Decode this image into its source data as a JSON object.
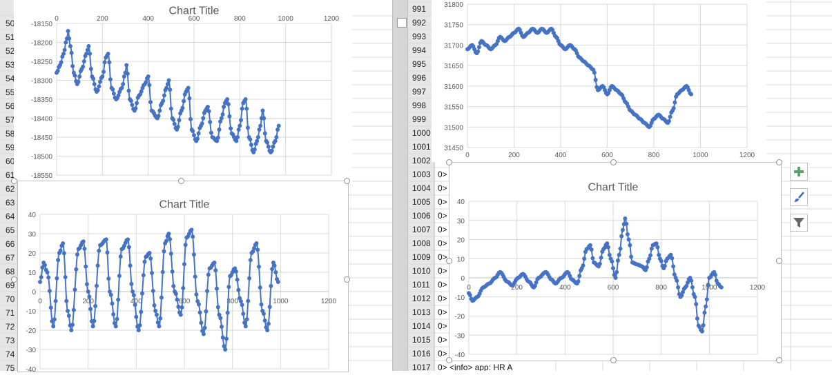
{
  "left_rows": [
    "50",
    "51",
    "52",
    "53",
    "54",
    "55",
    "56",
    "57",
    "58",
    "59",
    "60",
    "61",
    "62",
    "63",
    "64",
    "65",
    "66",
    "67",
    "68",
    "69",
    "70",
    "71",
    "72",
    "73",
    "74",
    "75"
  ],
  "right_rows": [
    "991",
    "992",
    "993",
    "994",
    "995",
    "996",
    "997",
    "998",
    "999",
    "1000",
    "1001",
    "1002",
    "1003",
    "1004",
    "1005",
    "1006",
    "1007",
    "1008",
    "1009",
    "1010",
    "1011",
    "1012",
    "1013",
    "1014",
    "1015",
    "1016",
    "1017"
  ],
  "log_cells": [
    "0>",
    "0>",
    "0>",
    "0>",
    "0>",
    "0>",
    "0>",
    "0>",
    "0>",
    "0>",
    "0>",
    "0>",
    "0>",
    "0>"
  ],
  "log_last": "0> <info> app: HR A",
  "chart_tools": {
    "add": "chart-elements",
    "style": "chart-styles",
    "filter": "chart-filters"
  },
  "chart_data": [
    {
      "id": "top-left",
      "type": "scatter",
      "title": "Chart Title",
      "xticks": [
        "0",
        "200",
        "400",
        "600",
        "800",
        "1000",
        "1200"
      ],
      "yticks": [
        "-18150",
        "-18200",
        "-18250",
        "-18300",
        "-18350",
        "-18400",
        "-18450",
        "-18500",
        "-18550"
      ],
      "xlim": [
        0,
        1200
      ],
      "ylim": [
        -18550,
        -18150
      ],
      "series": [
        {
          "color": "#4472C4",
          "points": [
            [
              0,
              -18280
            ],
            [
              15,
              -18260
            ],
            [
              30,
              -18230
            ],
            [
              45,
              -18190
            ],
            [
              50,
              -18170
            ],
            [
              60,
              -18210
            ],
            [
              75,
              -18280
            ],
            [
              90,
              -18310
            ],
            [
              110,
              -18270
            ],
            [
              130,
              -18230
            ],
            [
              140,
              -18210
            ],
            [
              155,
              -18290
            ],
            [
              175,
              -18330
            ],
            [
              200,
              -18290
            ],
            [
              215,
              -18240
            ],
            [
              225,
              -18230
            ],
            [
              240,
              -18320
            ],
            [
              260,
              -18350
            ],
            [
              285,
              -18320
            ],
            [
              300,
              -18280
            ],
            [
              305,
              -18260
            ],
            [
              320,
              -18350
            ],
            [
              340,
              -18380
            ],
            [
              360,
              -18340
            ],
            [
              385,
              -18310
            ],
            [
              400,
              -18290
            ],
            [
              415,
              -18380
            ],
            [
              440,
              -18400
            ],
            [
              460,
              -18360
            ],
            [
              480,
              -18320
            ],
            [
              490,
              -18300
            ],
            [
              505,
              -18400
            ],
            [
              525,
              -18430
            ],
            [
              545,
              -18380
            ],
            [
              565,
              -18330
            ],
            [
              575,
              -18320
            ],
            [
              590,
              -18430
            ],
            [
              610,
              -18460
            ],
            [
              630,
              -18420
            ],
            [
              650,
              -18380
            ],
            [
              660,
              -18370
            ],
            [
              680,
              -18450
            ],
            [
              700,
              -18460
            ],
            [
              720,
              -18400
            ],
            [
              735,
              -18360
            ],
            [
              745,
              -18350
            ],
            [
              765,
              -18440
            ],
            [
              785,
              -18460
            ],
            [
              800,
              -18420
            ],
            [
              815,
              -18360
            ],
            [
              825,
              -18350
            ],
            [
              840,
              -18450
            ],
            [
              860,
              -18490
            ],
            [
              875,
              -18460
            ],
            [
              890,
              -18420
            ],
            [
              900,
              -18380
            ],
            [
              915,
              -18460
            ],
            [
              935,
              -18490
            ],
            [
              955,
              -18460
            ],
            [
              970,
              -18420
            ]
          ]
        }
      ]
    },
    {
      "id": "bottom-left",
      "type": "scatter",
      "title": "Chart Title",
      "xticks": [
        "0",
        "200",
        "400",
        "600",
        "800",
        "1000",
        "1200"
      ],
      "yticks": [
        "40",
        "30",
        "20",
        "10",
        "0",
        "-10",
        "-20",
        "-30",
        "-40"
      ],
      "xlim": [
        0,
        1200
      ],
      "ylim": [
        -40,
        40
      ],
      "series": [
        {
          "color": "#4472C4",
          "points": [
            [
              0,
              5
            ],
            [
              15,
              15
            ],
            [
              30,
              10
            ],
            [
              55,
              -18
            ],
            [
              80,
              20
            ],
            [
              95,
              25
            ],
            [
              115,
              -10
            ],
            [
              130,
              -20
            ],
            [
              160,
              22
            ],
            [
              180,
              26
            ],
            [
              200,
              0
            ],
            [
              220,
              -18
            ],
            [
              250,
              24
            ],
            [
              275,
              27
            ],
            [
              290,
              0
            ],
            [
              315,
              -18
            ],
            [
              340,
              22
            ],
            [
              365,
              27
            ],
            [
              385,
              0
            ],
            [
              410,
              -20
            ],
            [
              440,
              18
            ],
            [
              455,
              20
            ],
            [
              480,
              -10
            ],
            [
              495,
              -18
            ],
            [
              520,
              25
            ],
            [
              535,
              30
            ],
            [
              560,
              0
            ],
            [
              585,
              -12
            ],
            [
              610,
              28
            ],
            [
              630,
              32
            ],
            [
              655,
              -5
            ],
            [
              680,
              -22
            ],
            [
              705,
              12
            ],
            [
              725,
              15
            ],
            [
              745,
              -12
            ],
            [
              770,
              -30
            ],
            [
              790,
              8
            ],
            [
              810,
              12
            ],
            [
              835,
              -5
            ],
            [
              855,
              -18
            ],
            [
              880,
              20
            ],
            [
              900,
              25
            ],
            [
              925,
              -10
            ],
            [
              945,
              -20
            ],
            [
              970,
              15
            ],
            [
              990,
              5
            ]
          ]
        }
      ]
    },
    {
      "id": "top-right",
      "type": "scatter",
      "title": "",
      "xticks": [
        "0",
        "200",
        "400",
        "600",
        "800",
        "1000",
        "1200"
      ],
      "yticks": [
        "31800",
        "31750",
        "31700",
        "31650",
        "31600",
        "31550",
        "31500",
        "31450"
      ],
      "xlim": [
        0,
        1200
      ],
      "ylim": [
        31450,
        31800
      ],
      "series": [
        {
          "color": "#4472C4",
          "points": [
            [
              0,
              31690
            ],
            [
              20,
              31700
            ],
            [
              40,
              31680
            ],
            [
              60,
              31710
            ],
            [
              80,
              31700
            ],
            [
              100,
              31690
            ],
            [
              120,
              31700
            ],
            [
              140,
              31720
            ],
            [
              160,
              31710
            ],
            [
              180,
              31720
            ],
            [
              200,
              31730
            ],
            [
              220,
              31740
            ],
            [
              240,
              31720
            ],
            [
              260,
              31730
            ],
            [
              280,
              31740
            ],
            [
              300,
              31730
            ],
            [
              320,
              31740
            ],
            [
              340,
              31730
            ],
            [
              360,
              31740
            ],
            [
              380,
              31720
            ],
            [
              400,
              31700
            ],
            [
              420,
              31690
            ],
            [
              440,
              31700
            ],
            [
              460,
              31690
            ],
            [
              480,
              31670
            ],
            [
              500,
              31660
            ],
            [
              520,
              31650
            ],
            [
              540,
              31640
            ],
            [
              560,
              31590
            ],
            [
              580,
              31600
            ],
            [
              600,
              31580
            ],
            [
              620,
              31600
            ],
            [
              640,
              31590
            ],
            [
              660,
              31580
            ],
            [
              680,
              31560
            ],
            [
              700,
              31540
            ],
            [
              720,
              31530
            ],
            [
              740,
              31520
            ],
            [
              760,
              31510
            ],
            [
              780,
              31500
            ],
            [
              800,
              31520
            ],
            [
              820,
              31530
            ],
            [
              840,
              31520
            ],
            [
              860,
              31510
            ],
            [
              880,
              31540
            ],
            [
              900,
              31580
            ],
            [
              920,
              31590
            ],
            [
              940,
              31600
            ],
            [
              960,
              31580
            ]
          ]
        }
      ]
    },
    {
      "id": "bottom-right",
      "type": "scatter",
      "title": "Chart Title",
      "xticks": [
        "0",
        "200",
        "400",
        "600",
        "800",
        "1000",
        "1200"
      ],
      "yticks": [
        "40",
        "30",
        "20",
        "10",
        "0",
        "-10",
        "-20",
        "-30",
        "-40"
      ],
      "xlim": [
        0,
        1200
      ],
      "ylim": [
        -40,
        40
      ],
      "series": [
        {
          "color": "#4472C4",
          "points": [
            [
              0,
              -8
            ],
            [
              15,
              -12
            ],
            [
              35,
              -10
            ],
            [
              60,
              -5
            ],
            [
              85,
              -3
            ],
            [
              110,
              0
            ],
            [
              130,
              3
            ],
            [
              160,
              -2
            ],
            [
              180,
              -4
            ],
            [
              205,
              0
            ],
            [
              225,
              2
            ],
            [
              250,
              -2
            ],
            [
              270,
              -5
            ],
            [
              290,
              0
            ],
            [
              320,
              3
            ],
            [
              345,
              -1
            ],
            [
              360,
              -3
            ],
            [
              385,
              0
            ],
            [
              410,
              3
            ],
            [
              430,
              -1
            ],
            [
              450,
              -3
            ],
            [
              470,
              5
            ],
            [
              490,
              15
            ],
            [
              505,
              17
            ],
            [
              520,
              8
            ],
            [
              540,
              6
            ],
            [
              560,
              15
            ],
            [
              575,
              18
            ],
            [
              590,
              10
            ],
            [
              610,
              0
            ],
            [
              625,
              12
            ],
            [
              640,
              25
            ],
            [
              650,
              31
            ],
            [
              665,
              20
            ],
            [
              680,
              8
            ],
            [
              700,
              7
            ],
            [
              720,
              6
            ],
            [
              735,
              4
            ],
            [
              750,
              10
            ],
            [
              765,
              17
            ],
            [
              780,
              18
            ],
            [
              795,
              10
            ],
            [
              810,
              5
            ],
            [
              825,
              10
            ],
            [
              840,
              12
            ],
            [
              860,
              0
            ],
            [
              880,
              -10
            ],
            [
              900,
              -5
            ],
            [
              920,
              0
            ],
            [
              940,
              -10
            ],
            [
              955,
              -25
            ],
            [
              970,
              -28
            ],
            [
              985,
              -15
            ],
            [
              1000,
              0
            ],
            [
              1020,
              3
            ],
            [
              1035,
              -3
            ],
            [
              1050,
              -5
            ]
          ]
        }
      ]
    }
  ]
}
